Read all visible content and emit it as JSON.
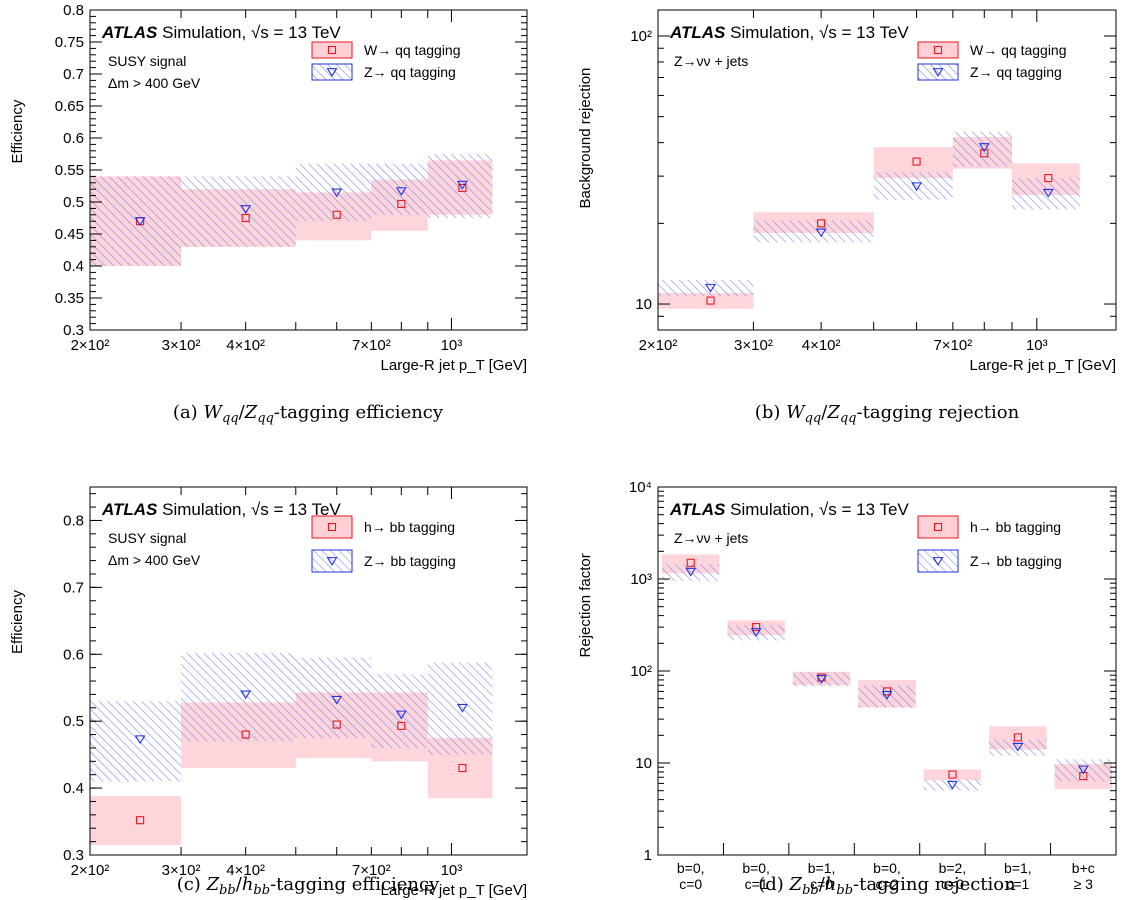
{
  "captions": [
    {
      "label": "(a)",
      "math": [
        [
          "W",
          "qq"
        ],
        [
          "Z",
          "qq"
        ]
      ],
      "text": "-tagging efficiency"
    },
    {
      "label": "(b)",
      "math": [
        [
          "W",
          "qq"
        ],
        [
          "Z",
          "qq"
        ]
      ],
      "text": "-tagging rejection"
    },
    {
      "label": "(c)",
      "math": [
        [
          "Z",
          "bb"
        ],
        [
          "h",
          "bb"
        ]
      ],
      "text": "-tagging efficiency"
    },
    {
      "label": "(d)",
      "math": [
        [
          "Z",
          "bb"
        ],
        [
          "h",
          "bb"
        ]
      ],
      "text": "-tagging rejection"
    }
  ],
  "colors": {
    "red": "#e8171f",
    "red_fill": "#fdd0d6",
    "blue": "#1f33e0",
    "blue_hatch": "#7f8aee"
  },
  "chart_data": [
    {
      "id": "a",
      "type": "scatter",
      "atlas": {
        "bold": "ATLAS",
        "text": "Simulation,",
        "energy": "s = 13 TeV"
      },
      "notes": [
        "SUSY signal",
        "Δm > 400 GeV"
      ],
      "xlabel": "Large-R jet p_T [GeV]",
      "ylabel": "Efficiency",
      "xscale": "log",
      "xlim": [
        200,
        1400
      ],
      "ylim": [
        0.3,
        0.8
      ],
      "yticks": [
        "0.3",
        "0.35",
        "0.4",
        "0.45",
        "0.5",
        "0.55",
        "0.6",
        "0.65",
        "0.7",
        "0.75",
        "0.8"
      ],
      "xticks": [
        {
          "v": 200,
          "label": "2×10²"
        },
        {
          "v": 300,
          "label": "3×10²"
        },
        {
          "v": 400,
          "label": "4×10²"
        },
        {
          "v": 700,
          "label": "7×10²"
        },
        {
          "v": 1000,
          "label": "10³"
        }
      ],
      "bins": [
        [
          200,
          300
        ],
        [
          300,
          500
        ],
        [
          500,
          700
        ],
        [
          700,
          900
        ],
        [
          900,
          1200
        ]
      ],
      "series": [
        {
          "name": "W→ qq tagging",
          "marker": "square",
          "x": [
            250,
            400,
            600,
            800,
            1050
          ],
          "y": [
            0.47,
            0.475,
            0.48,
            0.497,
            0.522
          ],
          "band": [
            [
              0.4,
              0.54
            ],
            [
              0.43,
              0.52
            ],
            [
              0.44,
              0.515
            ],
            [
              0.455,
              0.535
            ],
            [
              0.48,
              0.565
            ]
          ]
        },
        {
          "name": "Z→ qq tagging",
          "marker": "triangle",
          "x": [
            250,
            400,
            600,
            800,
            1050
          ],
          "y": [
            0.47,
            0.489,
            0.515,
            0.517,
            0.527
          ],
          "band": [
            [
              0.4,
              0.54
            ],
            [
              0.43,
              0.54
            ],
            [
              0.47,
              0.56
            ],
            [
              0.48,
              0.56
            ],
            [
              0.475,
              0.575
            ]
          ]
        }
      ]
    },
    {
      "id": "b",
      "type": "scatter",
      "atlas": {
        "bold": "ATLAS",
        "text": "Simulation,",
        "energy": "s = 13 TeV"
      },
      "notes": [
        "Z→νν + jets"
      ],
      "xlabel": "Large-R jet p_T [GeV]",
      "ylabel": "Background rejection",
      "xscale": "log",
      "yscale": "log",
      "xlim": [
        200,
        1400
      ],
      "ylim": [
        8,
        125
      ],
      "yticks": [
        "10",
        "10²"
      ],
      "xticks": [
        {
          "v": 200,
          "label": "2×10²"
        },
        {
          "v": 300,
          "label": "3×10²"
        },
        {
          "v": 400,
          "label": "4×10²"
        },
        {
          "v": 700,
          "label": "7×10²"
        },
        {
          "v": 1000,
          "label": "10³"
        }
      ],
      "bins": [
        [
          200,
          300
        ],
        [
          300,
          500
        ],
        [
          500,
          700
        ],
        [
          700,
          900
        ],
        [
          900,
          1200
        ]
      ],
      "series": [
        {
          "name": "W→ qq tagging",
          "marker": "square",
          "x": [
            250,
            400,
            600,
            800,
            1050
          ],
          "y": [
            10.3,
            20.0,
            34.0,
            36.5,
            29.5
          ],
          "band": [
            [
              9.6,
              11.0
            ],
            [
              18.4,
              22.0
            ],
            [
              29.5,
              38.5
            ],
            [
              32.0,
              42.0
            ],
            [
              25.5,
              33.5
            ]
          ]
        },
        {
          "name": "Z→ qq tagging",
          "marker": "triangle",
          "x": [
            250,
            400,
            600,
            800,
            1050
          ],
          "y": [
            11.5,
            18.5,
            27.5,
            38.5,
            26.0
          ],
          "band": [
            [
              10.7,
              12.3
            ],
            [
              17.0,
              20.5
            ],
            [
              24.5,
              31.0
            ],
            [
              32.5,
              44.0
            ],
            [
              22.5,
              29.5
            ]
          ]
        }
      ]
    },
    {
      "id": "c",
      "type": "scatter",
      "atlas": {
        "bold": "ATLAS",
        "text": "Simulation,",
        "energy": "s = 13 TeV"
      },
      "notes": [
        "SUSY signal",
        "Δm > 400 GeV"
      ],
      "xlabel": "Large-R jet p_T [GeV]",
      "ylabel": "Efficiency",
      "xscale": "log",
      "xlim": [
        200,
        1400
      ],
      "ylim": [
        0.3,
        0.85
      ],
      "yticks": [
        "0.3",
        "0.4",
        "0.5",
        "0.6",
        "0.7",
        "0.8"
      ],
      "xticks": [
        {
          "v": 200,
          "label": "2×10²"
        },
        {
          "v": 300,
          "label": "3×10²"
        },
        {
          "v": 400,
          "label": "4×10²"
        },
        {
          "v": 700,
          "label": "7×10²"
        },
        {
          "v": 1000,
          "label": "10³"
        }
      ],
      "bins": [
        [
          200,
          300
        ],
        [
          300,
          500
        ],
        [
          500,
          700
        ],
        [
          700,
          900
        ],
        [
          900,
          1200
        ]
      ],
      "series": [
        {
          "name": "h→ bb tagging",
          "marker": "square",
          "x": [
            250,
            400,
            600,
            800,
            1050
          ],
          "y": [
            0.352,
            0.48,
            0.495,
            0.493,
            0.43
          ],
          "band": [
            [
              0.315,
              0.388
            ],
            [
              0.43,
              0.528
            ],
            [
              0.445,
              0.543
            ],
            [
              0.44,
              0.543
            ],
            [
              0.385,
              0.475
            ]
          ]
        },
        {
          "name": "Z→ bb tagging",
          "marker": "triangle",
          "x": [
            250,
            400,
            600,
            800,
            1050
          ],
          "y": [
            0.473,
            0.54,
            0.532,
            0.51,
            0.52
          ],
          "band": [
            [
              0.41,
              0.53
            ],
            [
              0.47,
              0.602
            ],
            [
              0.475,
              0.595
            ],
            [
              0.46,
              0.57
            ],
            [
              0.45,
              0.588
            ]
          ]
        }
      ]
    },
    {
      "id": "d",
      "type": "scatter",
      "atlas": {
        "bold": "ATLAS",
        "text": "Simulation,",
        "energy": "s = 13 TeV"
      },
      "notes": [
        "Z→νν + jets"
      ],
      "ylabel": "Rejection factor",
      "yscale": "log",
      "ylim": [
        1,
        10000
      ],
      "yticks": [
        "1",
        "10",
        "10²",
        "10³",
        "10⁴"
      ],
      "categories": [
        [
          "b=0,",
          "c=0"
        ],
        [
          "b=0,",
          "c=1"
        ],
        [
          "b=1,",
          "c=0"
        ],
        [
          "b=0,",
          "c=2"
        ],
        [
          "b=2,",
          "c=0"
        ],
        [
          "b=1,",
          "c=1"
        ],
        [
          "b+c",
          "≥ 3"
        ]
      ],
      "series": [
        {
          "name": "h→ bb tagging",
          "marker": "square",
          "y": [
            1500,
            300,
            85,
            60,
            7.5,
            19,
            7.2
          ],
          "band": [
            [
              1150,
              1850
            ],
            [
              245,
              355
            ],
            [
              70,
              98
            ],
            [
              40,
              80
            ],
            [
              6.5,
              8.5
            ],
            [
              14,
              25
            ],
            [
              5.2,
              9.8
            ]
          ]
        },
        {
          "name": "Z→ bb tagging",
          "marker": "triangle",
          "y": [
            1200,
            265,
            82,
            55,
            5.8,
            15,
            8.5
          ],
          "band": [
            [
              950,
              1450
            ],
            [
              215,
              315
            ],
            [
              68,
              96
            ],
            [
              40,
              70
            ],
            [
              5.0,
              6.6
            ],
            [
              12,
              18
            ],
            [
              6.3,
              11
            ]
          ]
        }
      ]
    }
  ]
}
